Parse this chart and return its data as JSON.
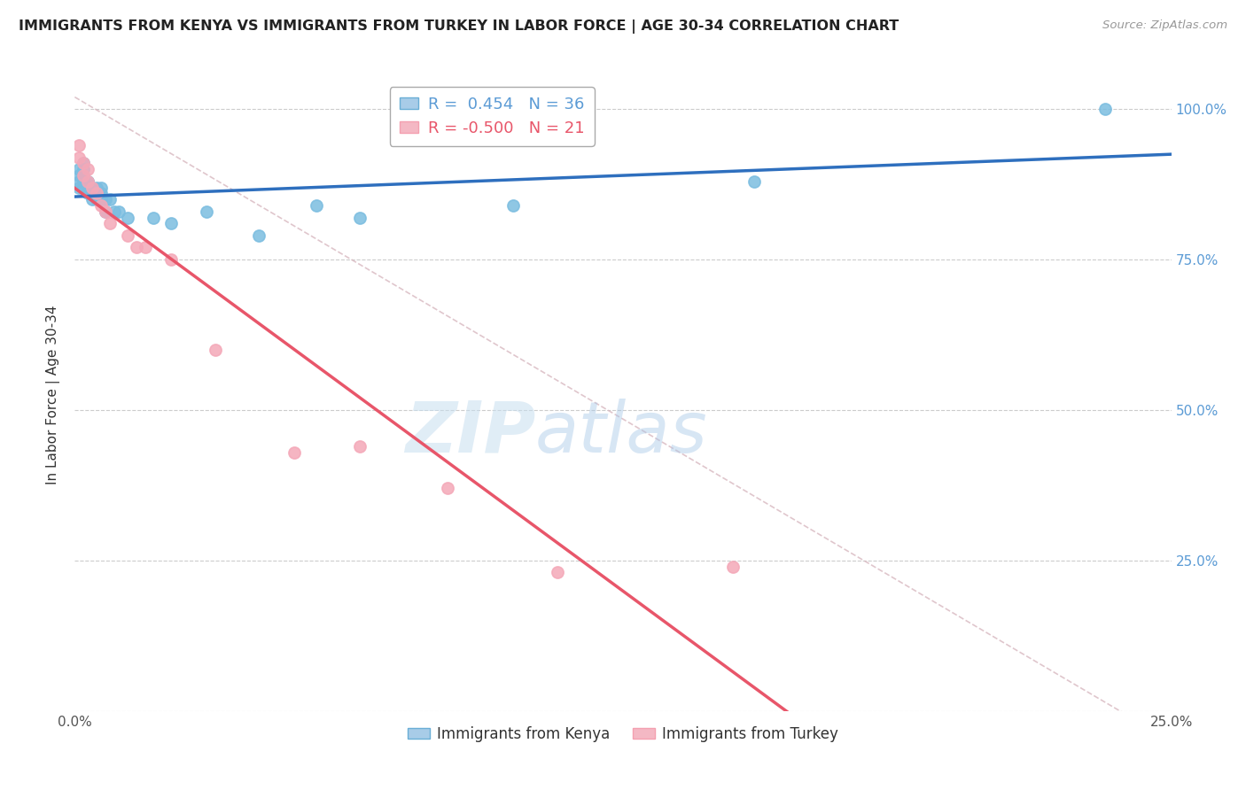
{
  "title": "IMMIGRANTS FROM KENYA VS IMMIGRANTS FROM TURKEY IN LABOR FORCE | AGE 30-34 CORRELATION CHART",
  "source": "Source: ZipAtlas.com",
  "ylabel_label": "In Labor Force | Age 30-34",
  "xlim": [
    0.0,
    0.25
  ],
  "ylim": [
    0.0,
    1.05
  ],
  "xticks": [
    0.0,
    0.05,
    0.1,
    0.15,
    0.2,
    0.25
  ],
  "xtick_labels": [
    "0.0%",
    "",
    "",
    "",
    "",
    "25.0%"
  ],
  "yticks": [
    0.0,
    0.25,
    0.5,
    0.75,
    1.0
  ],
  "ytick_labels_right": [
    "",
    "25.0%",
    "50.0%",
    "75.0%",
    "100.0%"
  ],
  "kenya_R": 0.454,
  "kenya_N": 36,
  "turkey_R": -0.5,
  "turkey_N": 21,
  "kenya_color": "#7bbde0",
  "turkey_color": "#f4a8b8",
  "kenya_line_color": "#2e6fbe",
  "turkey_line_color": "#e8566a",
  "ref_line_color": "#d8b8c0",
  "right_tick_color": "#5b9bd5",
  "kenya_x": [
    0.001,
    0.001,
    0.001,
    0.001,
    0.002,
    0.002,
    0.002,
    0.002,
    0.002,
    0.003,
    0.003,
    0.003,
    0.003,
    0.004,
    0.004,
    0.005,
    0.005,
    0.005,
    0.006,
    0.006,
    0.006,
    0.007,
    0.007,
    0.008,
    0.009,
    0.01,
    0.012,
    0.018,
    0.022,
    0.03,
    0.042,
    0.055,
    0.065,
    0.1,
    0.155,
    0.235
  ],
  "kenya_y": [
    0.88,
    0.89,
    0.9,
    0.87,
    0.91,
    0.89,
    0.87,
    0.88,
    0.9,
    0.88,
    0.87,
    0.88,
    0.86,
    0.87,
    0.85,
    0.86,
    0.85,
    0.87,
    0.86,
    0.85,
    0.87,
    0.85,
    0.83,
    0.85,
    0.83,
    0.83,
    0.82,
    0.82,
    0.81,
    0.83,
    0.79,
    0.84,
    0.82,
    0.84,
    0.88,
    1.0
  ],
  "turkey_x": [
    0.001,
    0.001,
    0.002,
    0.002,
    0.003,
    0.003,
    0.004,
    0.005,
    0.006,
    0.007,
    0.008,
    0.012,
    0.014,
    0.016,
    0.022,
    0.032,
    0.05,
    0.065,
    0.085,
    0.11,
    0.15
  ],
  "turkey_y": [
    0.94,
    0.92,
    0.91,
    0.89,
    0.9,
    0.88,
    0.87,
    0.86,
    0.84,
    0.83,
    0.81,
    0.79,
    0.77,
    0.77,
    0.75,
    0.6,
    0.43,
    0.44,
    0.37,
    0.23,
    0.24
  ],
  "watermark_zip": "ZIP",
  "watermark_atlas": "atlas",
  "background_color": "#ffffff",
  "grid_color": "#cccccc",
  "grid_style": "--"
}
